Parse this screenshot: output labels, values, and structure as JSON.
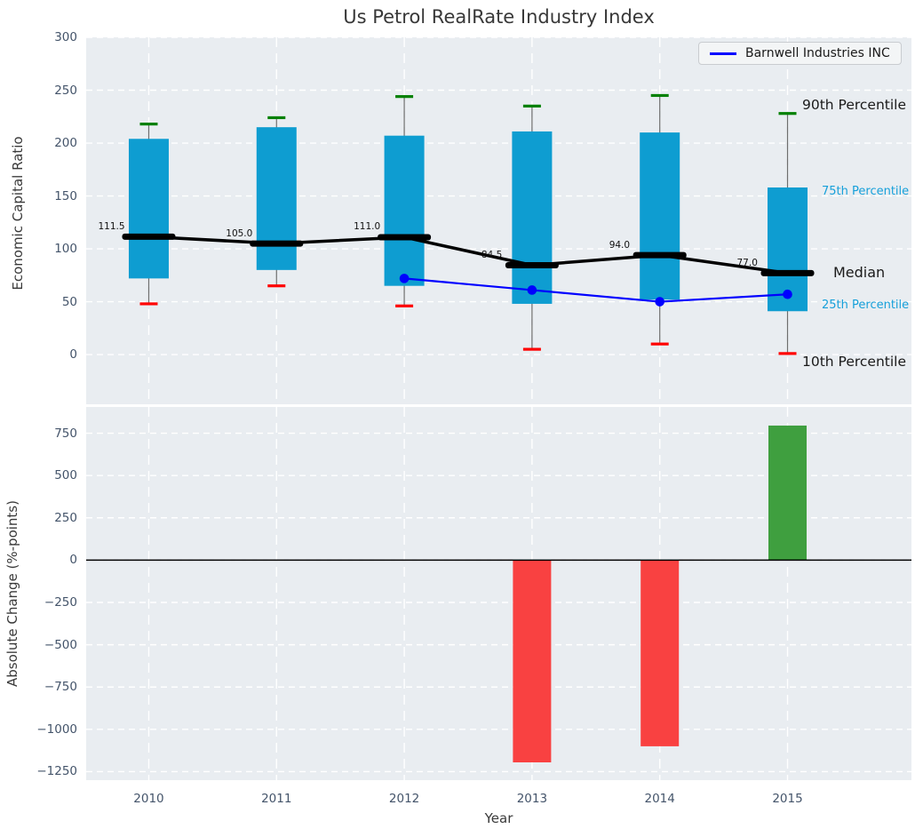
{
  "figure": {
    "background": "#ffffff",
    "plot_background": "#e9edf1",
    "grid_color": "#ffffff",
    "tick_color": "#44546a",
    "label_color": "#3a3a3a",
    "whisker_color": "#6e6e6e",
    "zero_line_color": "#000000"
  },
  "legend": {
    "label": "Barnwell Industries INC",
    "line_color": "#0000ff"
  },
  "chart_data": [
    {
      "type": "box-percentile-bars",
      "title": "Us Petrol RealRate Industry Index",
      "ylabel": "Economic Capital Ratio",
      "categories": [
        "2010",
        "2011",
        "2012",
        "2013",
        "2014",
        "2015"
      ],
      "yticks": [
        300,
        250,
        200,
        150,
        100,
        50,
        0
      ],
      "ylim": [
        -47,
        300
      ],
      "grid": true,
      "legend_position": "upper right",
      "bar_color": "#0e9dd1",
      "series": [
        {
          "name": "90th Percentile",
          "values": [
            218,
            224,
            244,
            235,
            245,
            228
          ],
          "color": "#008000"
        },
        {
          "name": "75th Percentile",
          "values": [
            204,
            215,
            207,
            211,
            210,
            158
          ],
          "color": "#0e9dd1"
        },
        {
          "name": "Median",
          "values": [
            111.5,
            105.0,
            111.0,
            84.5,
            94.0,
            77.0
          ],
          "color": "#000000"
        },
        {
          "name": "25th Percentile",
          "values": [
            72,
            80,
            65,
            48,
            52,
            41
          ],
          "color": "#0e9dd1"
        },
        {
          "name": "10th Percentile",
          "values": [
            48,
            65,
            46,
            5,
            10,
            1
          ],
          "color": "#ff0000"
        }
      ],
      "median_labels": [
        "111.5",
        "105.0",
        "111.0",
        "84.5",
        "94.0",
        "77.0"
      ],
      "company_line": {
        "name": "Barnwell Industries INC",
        "color": "#0000ff",
        "x": [
          "2012",
          "2013",
          "2014",
          "2015"
        ],
        "y": [
          72,
          61,
          50,
          57
        ]
      },
      "right_labels": [
        {
          "text": "90th Percentile",
          "color": "#1a1a1a"
        },
        {
          "text": "75th Percentile",
          "color": "#16a0da"
        },
        {
          "text": "Median",
          "color": "#1a1a1a"
        },
        {
          "text": "25th Percentile",
          "color": "#16a0da"
        },
        {
          "text": "10th Percentile",
          "color": "#1a1a1a"
        }
      ]
    },
    {
      "type": "bar",
      "ylabel": "Absolute Change (%-points)",
      "xlabel": "Year",
      "categories": [
        "2010",
        "2011",
        "2012",
        "2013",
        "2014",
        "2015"
      ],
      "values": [
        null,
        null,
        null,
        -1195,
        -1100,
        795
      ],
      "bar_colors": [
        null,
        null,
        null,
        "#f94141",
        "#f94141",
        "#3f9f3f"
      ],
      "yticks": [
        750,
        500,
        250,
        0,
        -250,
        -500,
        -750,
        -1000,
        -1250
      ],
      "ytick_labels": [
        "750",
        "500",
        "250",
        "0",
        "−250",
        "−500",
        "−750",
        "−1000",
        "−1250"
      ],
      "ylim": [
        -1300,
        905
      ],
      "zero_line": true,
      "grid": true
    }
  ]
}
